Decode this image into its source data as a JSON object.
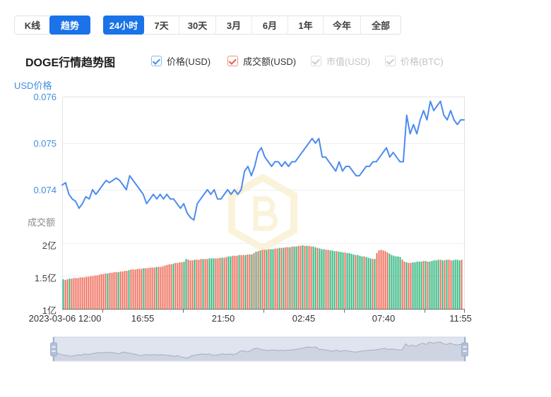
{
  "toolbar": {
    "chart_type_tabs": [
      {
        "label": "K线",
        "active": false
      },
      {
        "label": "趋势",
        "active": true
      }
    ],
    "range_tabs": [
      {
        "label": "24小时",
        "active": true
      },
      {
        "label": "7天",
        "active": false
      },
      {
        "label": "30天",
        "active": false
      },
      {
        "label": "3月",
        "active": false
      },
      {
        "label": "6月",
        "active": false
      },
      {
        "label": "1年",
        "active": false
      },
      {
        "label": "今年",
        "active": false
      },
      {
        "label": "全部",
        "active": false
      }
    ]
  },
  "header": {
    "title": "DOGE行情趋势图"
  },
  "legend": [
    {
      "label": "价格(USD)",
      "checked": true,
      "color": "#4a90e2"
    },
    {
      "label": "成交额(USD)",
      "checked": true,
      "color": "#e8604c"
    },
    {
      "label": "市值(USD)",
      "checked": false,
      "color": "#c9c9c9"
    },
    {
      "label": "价格(BTC)",
      "checked": false,
      "color": "#c9c9c9"
    }
  ],
  "chart": {
    "price_axis": {
      "title": "USD价格",
      "ticks": [
        "0.076",
        "0.075",
        "0.074"
      ]
    },
    "volume_axis": {
      "title": "成交额",
      "ticks": [
        "2亿",
        "1.5亿",
        "1亿"
      ]
    },
    "x_axis": {
      "labels": [
        "2023-03-06 12:00",
        "16:55",
        "21:50",
        "02:45",
        "07:40",
        "11:55"
      ]
    }
  },
  "colors": {
    "accent_blue": "#1a73e8",
    "line_blue": "#4c8bf0",
    "axis_tick_blue": "#3e8ede",
    "bar_down_red": "#ef6f5c",
    "bar_up_green": "#35b881",
    "watermark_cream": "#faf3da",
    "navigator_bg": "#dfe4ef",
    "navigator_handle": "#b3c0d9"
  },
  "chart_data": {
    "type": "line",
    "title": "DOGE行情趋势图",
    "x_start": "2023-03-06 12:00",
    "x_end": "2023-03-07 11:55",
    "x_tick_labels": [
      "2023-03-06 12:00",
      "16:55",
      "21:50",
      "02:45",
      "07:40",
      "11:55"
    ],
    "series": [
      {
        "name": "价格(USD)",
        "type": "line",
        "color": "#4c8bf0",
        "axis_title": "USD价格",
        "ylim": [
          0.073,
          0.076
        ],
        "y_ticks": [
          0.076,
          0.075,
          0.074
        ],
        "values": [
          0.0741,
          0.07415,
          0.0739,
          0.0738,
          0.07375,
          0.0736,
          0.0737,
          0.07385,
          0.0738,
          0.074,
          0.0739,
          0.074,
          0.0741,
          0.0742,
          0.07415,
          0.0742,
          0.07425,
          0.0742,
          0.0741,
          0.074,
          0.0743,
          0.0742,
          0.0741,
          0.074,
          0.0739,
          0.0737,
          0.0738,
          0.0739,
          0.0738,
          0.0739,
          0.0738,
          0.0739,
          0.0738,
          0.0738,
          0.0737,
          0.0736,
          0.0737,
          0.0735,
          0.0734,
          0.07335,
          0.0737,
          0.0738,
          0.0739,
          0.074,
          0.0739,
          0.074,
          0.0738,
          0.0738,
          0.0739,
          0.074,
          0.0739,
          0.074,
          0.0739,
          0.074,
          0.0744,
          0.0745,
          0.0743,
          0.0745,
          0.0748,
          0.0749,
          0.0747,
          0.0746,
          0.0745,
          0.0746,
          0.0746,
          0.0745,
          0.0746,
          0.0745,
          0.0746,
          0.0746,
          0.0747,
          0.0748,
          0.0749,
          0.075,
          0.0751,
          0.075,
          0.0751,
          0.0747,
          0.0747,
          0.0746,
          0.0745,
          0.0744,
          0.0746,
          0.0744,
          0.0745,
          0.0745,
          0.0744,
          0.0743,
          0.0743,
          0.0744,
          0.0745,
          0.0745,
          0.0746,
          0.0746,
          0.0747,
          0.0748,
          0.0749,
          0.0747,
          0.0748,
          0.0747,
          0.0746,
          0.0746,
          0.0756,
          0.0752,
          0.0754,
          0.0752,
          0.0755,
          0.0757,
          0.0755,
          0.0759,
          0.0757,
          0.0758,
          0.0759,
          0.0756,
          0.0755,
          0.0757,
          0.0755,
          0.0754,
          0.0755,
          0.0755
        ]
      },
      {
        "name": "成交额(USD)",
        "type": "bar",
        "unit": "亿",
        "axis_title": "成交额",
        "ylim": [
          1,
          2
        ],
        "y_ticks": [
          2,
          1.5,
          1
        ],
        "up_color": "#35b881",
        "down_color": "#ef6f5c",
        "values": [
          1.45,
          1.44,
          1.45,
          1.46,
          1.46,
          1.47,
          1.47,
          1.47,
          1.48,
          1.48,
          1.48,
          1.49,
          1.49,
          1.5,
          1.5,
          1.51,
          1.51,
          1.52,
          1.53,
          1.53,
          1.54,
          1.54,
          1.55,
          1.55,
          1.56,
          1.56,
          1.56,
          1.57,
          1.57,
          1.58,
          1.58,
          1.59,
          1.6,
          1.6,
          1.6,
          1.61,
          1.61,
          1.61,
          1.62,
          1.62,
          1.62,
          1.63,
          1.63,
          1.63,
          1.64,
          1.64,
          1.64,
          1.65,
          1.66,
          1.67,
          1.68,
          1.68,
          1.69,
          1.7,
          1.7,
          1.71,
          1.71,
          1.72,
          1.76,
          1.75,
          1.74,
          1.74,
          1.75,
          1.75,
          1.75,
          1.76,
          1.76,
          1.76,
          1.76,
          1.77,
          1.77,
          1.77,
          1.77,
          1.77,
          1.78,
          1.78,
          1.78,
          1.79,
          1.8,
          1.8,
          1.81,
          1.81,
          1.81,
          1.82,
          1.82,
          1.82,
          1.82,
          1.83,
          1.83,
          1.83,
          1.85,
          1.87,
          1.88,
          1.89,
          1.9,
          1.9,
          1.9,
          1.91,
          1.91,
          1.91,
          1.92,
          1.92,
          1.93,
          1.93,
          1.93,
          1.94,
          1.94,
          1.94,
          1.95,
          1.95,
          1.95,
          1.96,
          1.96,
          1.97,
          1.96,
          1.96,
          1.96,
          1.95,
          1.95,
          1.94,
          1.93,
          1.92,
          1.91,
          1.91,
          1.9,
          1.9,
          1.89,
          1.89,
          1.88,
          1.88,
          1.87,
          1.87,
          1.86,
          1.86,
          1.85,
          1.85,
          1.84,
          1.83,
          1.82,
          1.82,
          1.81,
          1.8,
          1.8,
          1.79,
          1.78,
          1.77,
          1.76,
          1.76,
          1.85,
          1.89,
          1.9,
          1.89,
          1.88,
          1.86,
          1.84,
          1.82,
          1.81,
          1.8,
          1.8,
          1.79,
          1.75,
          1.72,
          1.71,
          1.7,
          1.7,
          1.71,
          1.71,
          1.72,
          1.72,
          1.72,
          1.73,
          1.73,
          1.72,
          1.72,
          1.73,
          1.74,
          1.74,
          1.75,
          1.75,
          1.74,
          1.74,
          1.75,
          1.75,
          1.74,
          1.74,
          1.75,
          1.75,
          1.74,
          1.75
        ],
        "colors": "grrgrrrrrrrrrrrrrrrrrgrrrrgrrrrgrrrrrrgrrrrrgrrrrrrrgrrrrggrrrgrrrgrrgggrrrgrrggrrrgrrgrrgrgrgrrgrggrrgrgrrgrggrrgrgrrggrgggrrgggrgggrggggrgggrgggrgrrrrrrggggggrrgrrgggggrgrgggggrgrgrrggggr"
      }
    ]
  }
}
